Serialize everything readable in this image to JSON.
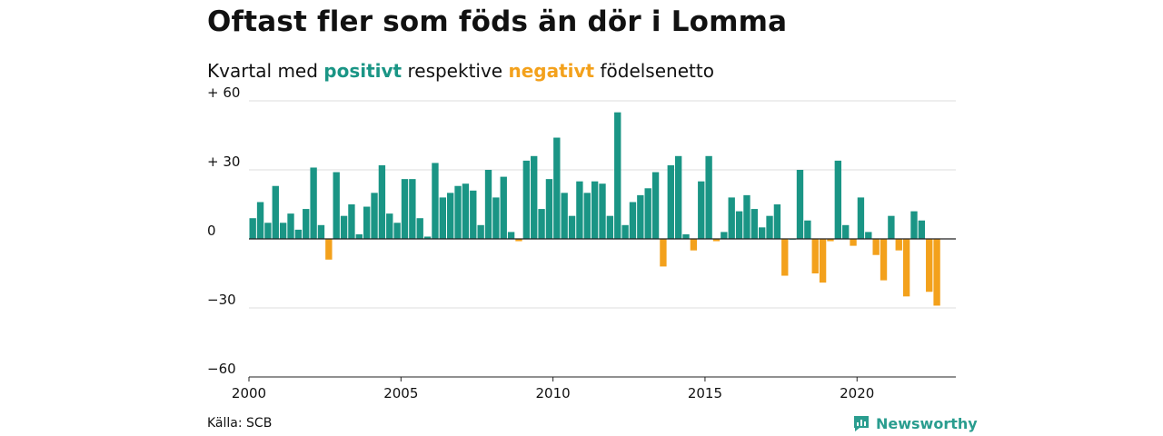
{
  "title": "Oftast fler som föds än dör i Lomma",
  "subtitle": {
    "prefix": "Kvartal med ",
    "positive_word": "positivt",
    "middle": " respektive ",
    "negative_word": "negativt",
    "suffix": " födelsenetto"
  },
  "source": "Källa: SCB",
  "brand": {
    "name": "Newsworthy"
  },
  "colors": {
    "positive": "#1a9585",
    "negative": "#f3a11c",
    "grid": "#dddddd",
    "axis": "#222222",
    "brand": "#2a9d8f"
  },
  "chart_data": {
    "type": "bar",
    "title": "Oftast fler som föds än dör i Lomma",
    "subtitle": "Kvartal med positivt respektive negativt födelsenetto",
    "xlabel": "",
    "ylabel": "",
    "x_start": 2000,
    "x_end": 2023.25,
    "ylim": [
      -60,
      60
    ],
    "y_ticks": [
      {
        "value": 60,
        "label": "+ 60"
      },
      {
        "value": 30,
        "label": "+ 30"
      },
      {
        "value": 0,
        "label": "0"
      },
      {
        "value": -30,
        "label": "−30"
      },
      {
        "value": -60,
        "label": "−60"
      }
    ],
    "x_ticks": [
      {
        "value": 2000,
        "label": "2000"
      },
      {
        "value": 2005,
        "label": "2005"
      },
      {
        "value": 2010,
        "label": "2010"
      },
      {
        "value": 2015,
        "label": "2015"
      },
      {
        "value": 2020,
        "label": "2020"
      }
    ],
    "grid": true,
    "first_period": "2000 Q1",
    "values": [
      9,
      16,
      7,
      23,
      7,
      11,
      4,
      13,
      31,
      6,
      -9,
      29,
      10,
      15,
      2,
      14,
      20,
      32,
      11,
      7,
      26,
      26,
      9,
      1,
      33,
      18,
      20,
      23,
      24,
      21,
      6,
      30,
      18,
      27,
      3,
      -1,
      34,
      36,
      13,
      26,
      44,
      20,
      10,
      25,
      20,
      25,
      24,
      10,
      55,
      6,
      16,
      19,
      22,
      29,
      -12,
      32,
      36,
      2,
      -5,
      25,
      36,
      -1,
      3,
      18,
      12,
      19,
      13,
      5,
      10,
      15,
      -16,
      0,
      30,
      8,
      -15,
      -19,
      -1,
      34,
      6,
      -3,
      18,
      3,
      -7,
      -18,
      10,
      -5,
      -25,
      12,
      8,
      -23,
      -29
    ]
  }
}
